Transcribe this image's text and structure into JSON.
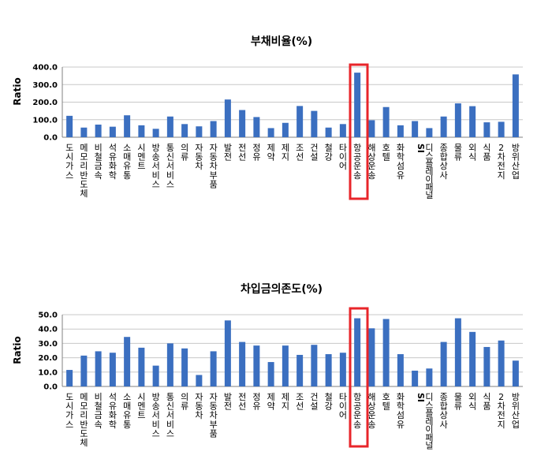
{
  "colors": {
    "bar": "#3b6fc0",
    "highlight": "#e8252a",
    "grid": "#c8c8c8",
    "axis": "#808080"
  },
  "chart_data": [
    {
      "type": "bar",
      "title": "부채비율(%)",
      "ylabel": "Ratio",
      "ylim": [
        0,
        400
      ],
      "yticks": [
        "0.0",
        "100.0",
        "200.0",
        "300.0",
        "400.0"
      ],
      "grid": true,
      "highlight_category": "항공운송",
      "categories": [
        "도시가스",
        "메모리반도체",
        "비철금속",
        "석유화학",
        "소매유통",
        "시멘트",
        "방송서비스",
        "통신서비스",
        "의류",
        "자동차",
        "자동차부품",
        "발전",
        "전선",
        "정유",
        "제약",
        "제지",
        "조선",
        "건설",
        "철강",
        "타이어",
        "항공운송",
        "해상운송",
        "호텔",
        "화학섬유",
        "SI",
        "디스플레이패널",
        "종합상사",
        "물류",
        "외식",
        "식품",
        "2차전지",
        "방위산업"
      ],
      "values": [
        122,
        55,
        72,
        60,
        125,
        68,
        48,
        118,
        75,
        62,
        92,
        215,
        155,
        115,
        52,
        82,
        178,
        150,
        55,
        75,
        368,
        97,
        172,
        68,
        92,
        52,
        118,
        193,
        177,
        85,
        88,
        358
      ]
    },
    {
      "type": "bar",
      "title": "차입금의존도(%)",
      "ylabel": "Ratio",
      "ylim": [
        0,
        50
      ],
      "yticks": [
        "0.0",
        "10.0",
        "20.0",
        "30.0",
        "40.0",
        "50.0"
      ],
      "grid": true,
      "highlight_category": "항공운송",
      "categories": [
        "도시가스",
        "메모리반도체",
        "비철금속",
        "석유화학",
        "소매유통",
        "시멘트",
        "방송서비스",
        "통신서비스",
        "의류",
        "자동차",
        "자동차부품",
        "발전",
        "전선",
        "정유",
        "제약",
        "제지",
        "조선",
        "건설",
        "철강",
        "타이어",
        "항공운송",
        "해상운송",
        "호텔",
        "화학섬유",
        "SI",
        "디스플레이패널",
        "종합상사",
        "물류",
        "외식",
        "식품",
        "2차전지",
        "방위산업"
      ],
      "values": [
        11.5,
        21.5,
        24.5,
        23.5,
        34.5,
        27,
        14.5,
        30,
        26.5,
        8,
        24.5,
        46,
        31,
        28.5,
        17,
        28.5,
        22,
        29,
        22.5,
        23.5,
        47.5,
        40.5,
        47,
        22.5,
        11,
        12.5,
        31,
        47.5,
        38,
        27.5,
        32,
        18
      ]
    }
  ]
}
